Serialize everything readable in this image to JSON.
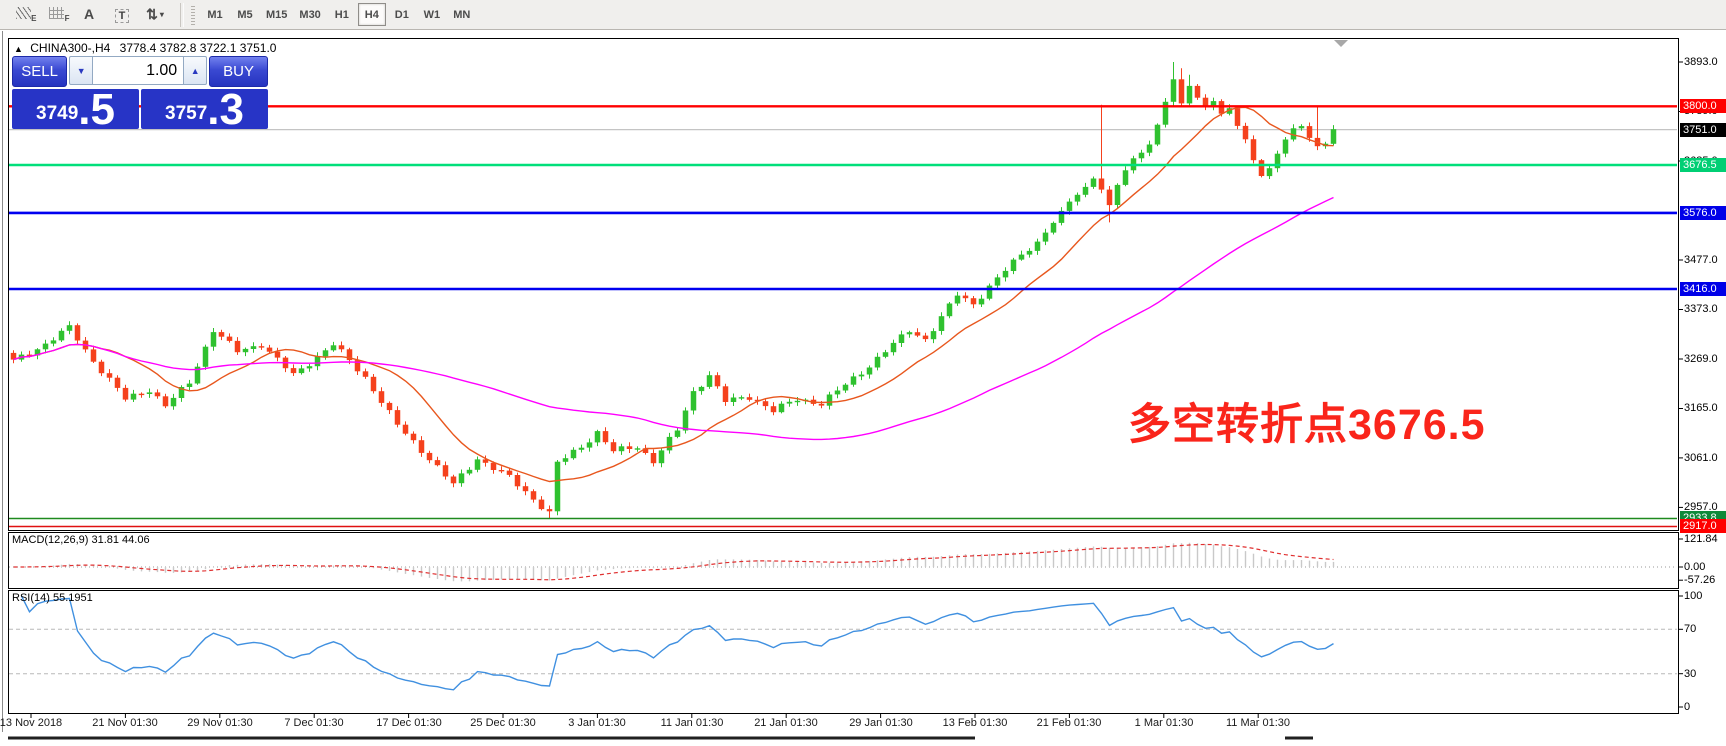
{
  "toolbar": {
    "icons": [
      {
        "name": "hatch-lines-e-icon",
        "type": "hatch",
        "sub": "E"
      },
      {
        "name": "grid-f-icon",
        "type": "grid",
        "sub": "F"
      },
      {
        "name": "text-annotation-icon",
        "type": "glyph",
        "glyph": "A"
      },
      {
        "name": "text-box-icon",
        "type": "boxed",
        "glyph": "T"
      },
      {
        "name": "arrange-arrows-icon",
        "type": "glyph2",
        "glyph": "⇅",
        "caret": "▾"
      }
    ],
    "timeframes": [
      {
        "label": "M1"
      },
      {
        "label": "M5"
      },
      {
        "label": "M15"
      },
      {
        "label": "M30"
      },
      {
        "label": "H1"
      },
      {
        "label": "H4",
        "active": true
      },
      {
        "label": "D1"
      },
      {
        "label": "W1"
      },
      {
        "label": "MN"
      }
    ]
  },
  "chart": {
    "collapse_icon": "▲",
    "symbol_period": "CHINA300-,H4",
    "ohlc_text": "3778.4 3782.8 3722.1 3751.0",
    "trade_panel": {
      "sell_label": "SELL",
      "buy_label": "BUY",
      "volume": "1.00",
      "down_icon": "▼",
      "up_icon": "▲",
      "sell_price_main": "3749",
      "sell_price_fraction": ".5",
      "buy_price_main": "3757",
      "buy_price_fraction": ".3"
    },
    "annotation": {
      "text": "多空转折点3676.5",
      "color": "#fa251b"
    }
  },
  "chart_data": {
    "type": "candlestick",
    "symbol": "CHINA300-",
    "timeframe": "H4",
    "ohlc_current": {
      "open": 3778.4,
      "high": 3782.8,
      "low": 3722.1,
      "close": 3751.0
    },
    "bid": 3749.5,
    "ask": 3757.3,
    "price_axis": {
      "ticks": [
        3893.0,
        3789.0,
        3685.0,
        3477.0,
        3373.0,
        3269.0,
        3165.0,
        3061.0,
        2957.0
      ],
      "visible_range": [
        2910,
        3944
      ]
    },
    "levels": [
      {
        "price": 3800.0,
        "label": "3800.0",
        "line_color": "#ff0000",
        "line_width": 2.4,
        "badge_bg": "#ff0000"
      },
      {
        "price": 3751.0,
        "label": "3751.0",
        "line_color": "#c4c4c4",
        "line_width": 1.2,
        "badge_bg": "#000000"
      },
      {
        "price": 3676.5,
        "label": "3676.5",
        "line_color": "#00df7a",
        "line_width": 2.6,
        "badge_bg": "#00cf74"
      },
      {
        "price": 3576.0,
        "label": "3576.0",
        "line_color": "#0000f0",
        "line_width": 2.6,
        "badge_bg": "#0000e8"
      },
      {
        "price": 3416.0,
        "label": "3416.0",
        "line_color": "#0000f0",
        "line_width": 2.6,
        "badge_bg": "#0000e8"
      },
      {
        "price": 2933.8,
        "label": "2933.8",
        "line_color": "#1e8a1e",
        "line_width": 1.6,
        "badge_bg": "#0e8a3a"
      },
      {
        "price": 2917.0,
        "label": "2917.0",
        "line_color": "#e01010",
        "line_width": 1.6,
        "badge_bg": "#ff0000"
      }
    ],
    "time_labels": [
      "13 Nov 2018",
      "21 Nov 01:30",
      "29 Nov 01:30",
      "7 Dec 01:30",
      "17 Dec 01:30",
      "25 Dec 01:30",
      "3 Jan 01:30",
      "11 Jan 01:30",
      "21 Jan 01:30",
      "29 Jan 01:30",
      "13 Feb 01:30",
      "21 Feb 01:30",
      "1 Mar 01:30",
      "11 Mar 01:30"
    ],
    "candles": {
      "count": 166,
      "up_color": "#2fc12f",
      "down_color": "#f5411d",
      "close_anchors": [
        [
          0,
          3265
        ],
        [
          4,
          3300
        ],
        [
          7,
          3335
        ],
        [
          10,
          3265
        ],
        [
          14,
          3185
        ],
        [
          17,
          3205
        ],
        [
          19,
          3170
        ],
        [
          22,
          3220
        ],
        [
          25,
          3330
        ],
        [
          28,
          3285
        ],
        [
          31,
          3300
        ],
        [
          35,
          3235
        ],
        [
          40,
          3300
        ],
        [
          44,
          3230
        ],
        [
          48,
          3130
        ],
        [
          52,
          3060
        ],
        [
          55,
          3005
        ],
        [
          58,
          3060
        ],
        [
          62,
          3020
        ],
        [
          65,
          2975
        ],
        [
          67,
          2945
        ],
        [
          68,
          3050
        ],
        [
          71,
          3085
        ],
        [
          73,
          3115
        ],
        [
          75,
          3075
        ],
        [
          78,
          3085
        ],
        [
          80,
          3055
        ],
        [
          83,
          3120
        ],
        [
          85,
          3200
        ],
        [
          87,
          3235
        ],
        [
          89,
          3180
        ],
        [
          92,
          3190
        ],
        [
          95,
          3160
        ],
        [
          98,
          3185
        ],
        [
          101,
          3175
        ],
        [
          104,
          3215
        ],
        [
          107,
          3255
        ],
        [
          110,
          3300
        ],
        [
          112,
          3330
        ],
        [
          114,
          3310
        ],
        [
          116,
          3355
        ],
        [
          118,
          3405
        ],
        [
          120,
          3385
        ],
        [
          122,
          3420
        ],
        [
          124,
          3455
        ],
        [
          126,
          3490
        ],
        [
          128,
          3515
        ],
        [
          130,
          3555
        ],
        [
          132,
          3600
        ],
        [
          134,
          3630
        ],
        [
          135,
          3650
        ],
        [
          136,
          3625
        ],
        [
          137,
          3590
        ],
        [
          138,
          3635
        ],
        [
          139,
          3665
        ],
        [
          140,
          3690
        ],
        [
          141,
          3705
        ],
        [
          142,
          3720
        ],
        [
          143,
          3760
        ],
        [
          144,
          3810
        ],
        [
          145,
          3855
        ],
        [
          146,
          3805
        ],
        [
          147,
          3845
        ],
        [
          148,
          3818
        ],
        [
          149,
          3800
        ],
        [
          150,
          3812
        ],
        [
          151,
          3782
        ],
        [
          152,
          3795
        ],
        [
          153,
          3760
        ],
        [
          154,
          3730
        ],
        [
          155,
          3688
        ],
        [
          156,
          3655
        ],
        [
          157,
          3668
        ],
        [
          158,
          3700
        ],
        [
          159,
          3730
        ],
        [
          160,
          3752
        ],
        [
          161,
          3760
        ],
        [
          162,
          3735
        ],
        [
          163,
          3715
        ],
        [
          164,
          3722
        ],
        [
          165,
          3751
        ]
      ],
      "wick_overrides": {
        "67": {
          "low": 2934
        },
        "136": {
          "high": 3803
        },
        "137": {
          "low": 3556
        },
        "145": {
          "high": 3893
        },
        "146": {
          "high": 3880
        },
        "147": {
          "high": 3866
        },
        "163": {
          "high": 3800
        }
      }
    },
    "moving_averages": [
      {
        "name": "fast",
        "period": 12,
        "color": "#e8571e"
      },
      {
        "name": "slow",
        "period": 55,
        "color": "#ff00ff"
      }
    ],
    "macd": {
      "label": "MACD(12,26,9) 31.81 44.06",
      "fast": 12,
      "slow": 26,
      "signal": 9,
      "value": 31.81,
      "signal_value": 44.06,
      "ticks": [
        {
          "v": 121.84,
          "label": "121.84"
        },
        {
          "v": 0,
          "label": "0.00"
        },
        {
          "v": -57.26,
          "label": "-57.26"
        }
      ],
      "histogram_color": "#c9c9c9",
      "signal_color": "#e03030"
    },
    "rsi": {
      "label": "RSI(14) 55.1951",
      "period": 14,
      "value": 55.1951,
      "ticks": [
        {
          "v": 100,
          "label": "100"
        },
        {
          "v": 70,
          "label": "70"
        },
        {
          "v": 30,
          "label": "30"
        },
        {
          "v": 0,
          "label": "0"
        }
      ],
      "levels": [
        70,
        30
      ],
      "color": "#4090e0"
    }
  }
}
